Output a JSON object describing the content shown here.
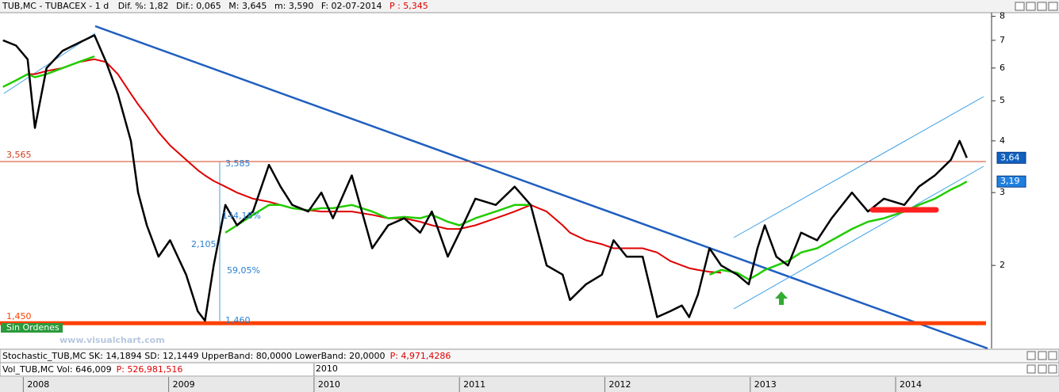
{
  "chart_data": {
    "type": "line",
    "title": "TUB,MC - TUBACEX - 1 d",
    "stats": [
      "Dif. %: 1,82",
      "Dif.: 0,065",
      "M: 3,645",
      "m: 3,590",
      "F: 02-07-2014"
    ],
    "stat_p": "P : 5,345",
    "log_scale": true,
    "x": [
      2007.86,
      2007.95,
      2008.03,
      2008.08,
      2008.16,
      2008.27,
      2008.38,
      2008.49,
      2008.57,
      2008.65,
      2008.74,
      2008.79,
      2008.85,
      2008.93,
      2009.01,
      2009.12,
      2009.2,
      2009.25,
      2009.31,
      2009.39,
      2009.47,
      2009.58,
      2009.69,
      2009.77,
      2009.85,
      2009.96,
      2010.05,
      2010.13,
      2010.26,
      2010.4,
      2010.51,
      2010.62,
      2010.73,
      2010.81,
      2010.92,
      2011.0,
      2011.11,
      2011.25,
      2011.38,
      2011.49,
      2011.6,
      2011.71,
      2011.76,
      2011.87,
      2011.98,
      2012.06,
      2012.15,
      2012.26,
      2012.36,
      2012.45,
      2012.53,
      2012.58,
      2012.64,
      2012.72,
      2012.8,
      2012.91,
      2012.99,
      2013.05,
      2013.1,
      2013.18,
      2013.26,
      2013.35,
      2013.46,
      2013.56,
      2013.7,
      2013.81,
      2013.92,
      2014.06,
      2014.16,
      2014.27,
      2014.38,
      2014.44,
      2014.49
    ],
    "series": [
      {
        "color": "#000000",
        "width": 2.5,
        "values": [
          7.0,
          6.8,
          6.3,
          4.3,
          6.0,
          6.6,
          6.9,
          7.2,
          6.2,
          5.2,
          4.0,
          3.0,
          2.5,
          2.1,
          2.3,
          1.9,
          1.55,
          1.47,
          2.0,
          2.8,
          2.5,
          2.7,
          3.5,
          3.1,
          2.8,
          2.7,
          3.0,
          2.6,
          3.3,
          2.2,
          2.5,
          2.6,
          2.4,
          2.7,
          2.1,
          2.4,
          2.9,
          2.8,
          3.1,
          2.8,
          2.0,
          1.9,
          1.65,
          1.8,
          1.9,
          2.3,
          2.1,
          2.1,
          1.5,
          1.55,
          1.6,
          1.5,
          1.7,
          2.2,
          2.0,
          1.9,
          1.8,
          2.2,
          2.5,
          2.1,
          2.0,
          2.4,
          2.3,
          2.6,
          3.0,
          2.7,
          2.9,
          2.8,
          3.1,
          3.3,
          3.6,
          4.0,
          3.64
        ]
      },
      {
        "color": "#e00000",
        "width": 2,
        "values": [
          null,
          null,
          5.8,
          5.8,
          5.9,
          6.0,
          6.2,
          6.3,
          6.2,
          5.8,
          5.2,
          4.9,
          4.6,
          4.2,
          3.9,
          3.6,
          3.4,
          3.3,
          3.2,
          3.1,
          3.0,
          2.9,
          2.85,
          2.8,
          2.75,
          2.72,
          2.7,
          2.7,
          2.7,
          2.65,
          2.6,
          2.6,
          2.55,
          2.5,
          2.45,
          2.45,
          2.5,
          2.6,
          2.7,
          2.8,
          2.7,
          2.5,
          2.4,
          2.3,
          2.25,
          2.2,
          2.2,
          2.2,
          2.15,
          2.05,
          2.0,
          1.97,
          1.95,
          1.93,
          1.92,
          null,
          null,
          null,
          null,
          null,
          null,
          null,
          null,
          null,
          null,
          null,
          null,
          null,
          null,
          null,
          null,
          null,
          null
        ]
      },
      {
        "color": "#22cc00",
        "width": 2.5,
        "values": [
          5.4,
          5.6,
          5.8,
          5.7,
          5.8,
          6.0,
          6.2,
          6.4,
          null,
          null,
          null,
          null,
          null,
          null,
          null,
          null,
          null,
          null,
          null,
          2.4,
          2.5,
          2.65,
          2.8,
          2.8,
          2.75,
          2.72,
          2.75,
          2.75,
          2.8,
          2.7,
          2.6,
          2.62,
          2.6,
          2.65,
          2.55,
          2.5,
          2.6,
          2.7,
          2.8,
          2.8,
          null,
          null,
          null,
          null,
          null,
          null,
          null,
          null,
          null,
          null,
          null,
          null,
          null,
          1.9,
          1.95,
          1.92,
          1.85,
          1.9,
          1.95,
          2.0,
          2.05,
          2.15,
          2.2,
          2.3,
          2.45,
          2.55,
          2.6,
          2.7,
          2.8,
          2.9,
          3.05,
          3.12,
          3.19
        ]
      }
    ],
    "xlim": [
      2007.84,
      2014.66
    ],
    "xticks": [
      2008,
      2009,
      2010,
      2011,
      2012,
      2013,
      2014
    ],
    "ylim": [
      1.26,
      8.2
    ],
    "yticks": [
      2,
      3,
      4,
      5,
      6,
      7,
      8
    ],
    "hlines": [
      {
        "value": 3.565,
        "label": "3,565",
        "color": "#d04020"
      },
      {
        "value": 1.45,
        "label": "1,450",
        "color": "#ff4000"
      }
    ],
    "badges": [
      {
        "value": 3.64,
        "label": "3,64",
        "color": "#1060c0"
      },
      {
        "value": 3.19,
        "label": "3,19",
        "color": "#2080e0"
      }
    ],
    "annotations": [
      "3,585",
      "144,18%",
      "2,105",
      "59,05%",
      "1,460",
      "Sin Ordenes",
      "www.visualchart.com"
    ],
    "stochastic": "Stochastic_TUB,MC SK: 14,1894 SD: 12,1449 UpperBand: 80,0000 LowerBand: 20,0000",
    "stochastic_p": "P: 4,971,4286",
    "volume": "Vol_TUB,MC Vol: 646,009",
    "volume_p": "P: 526,981,516"
  }
}
